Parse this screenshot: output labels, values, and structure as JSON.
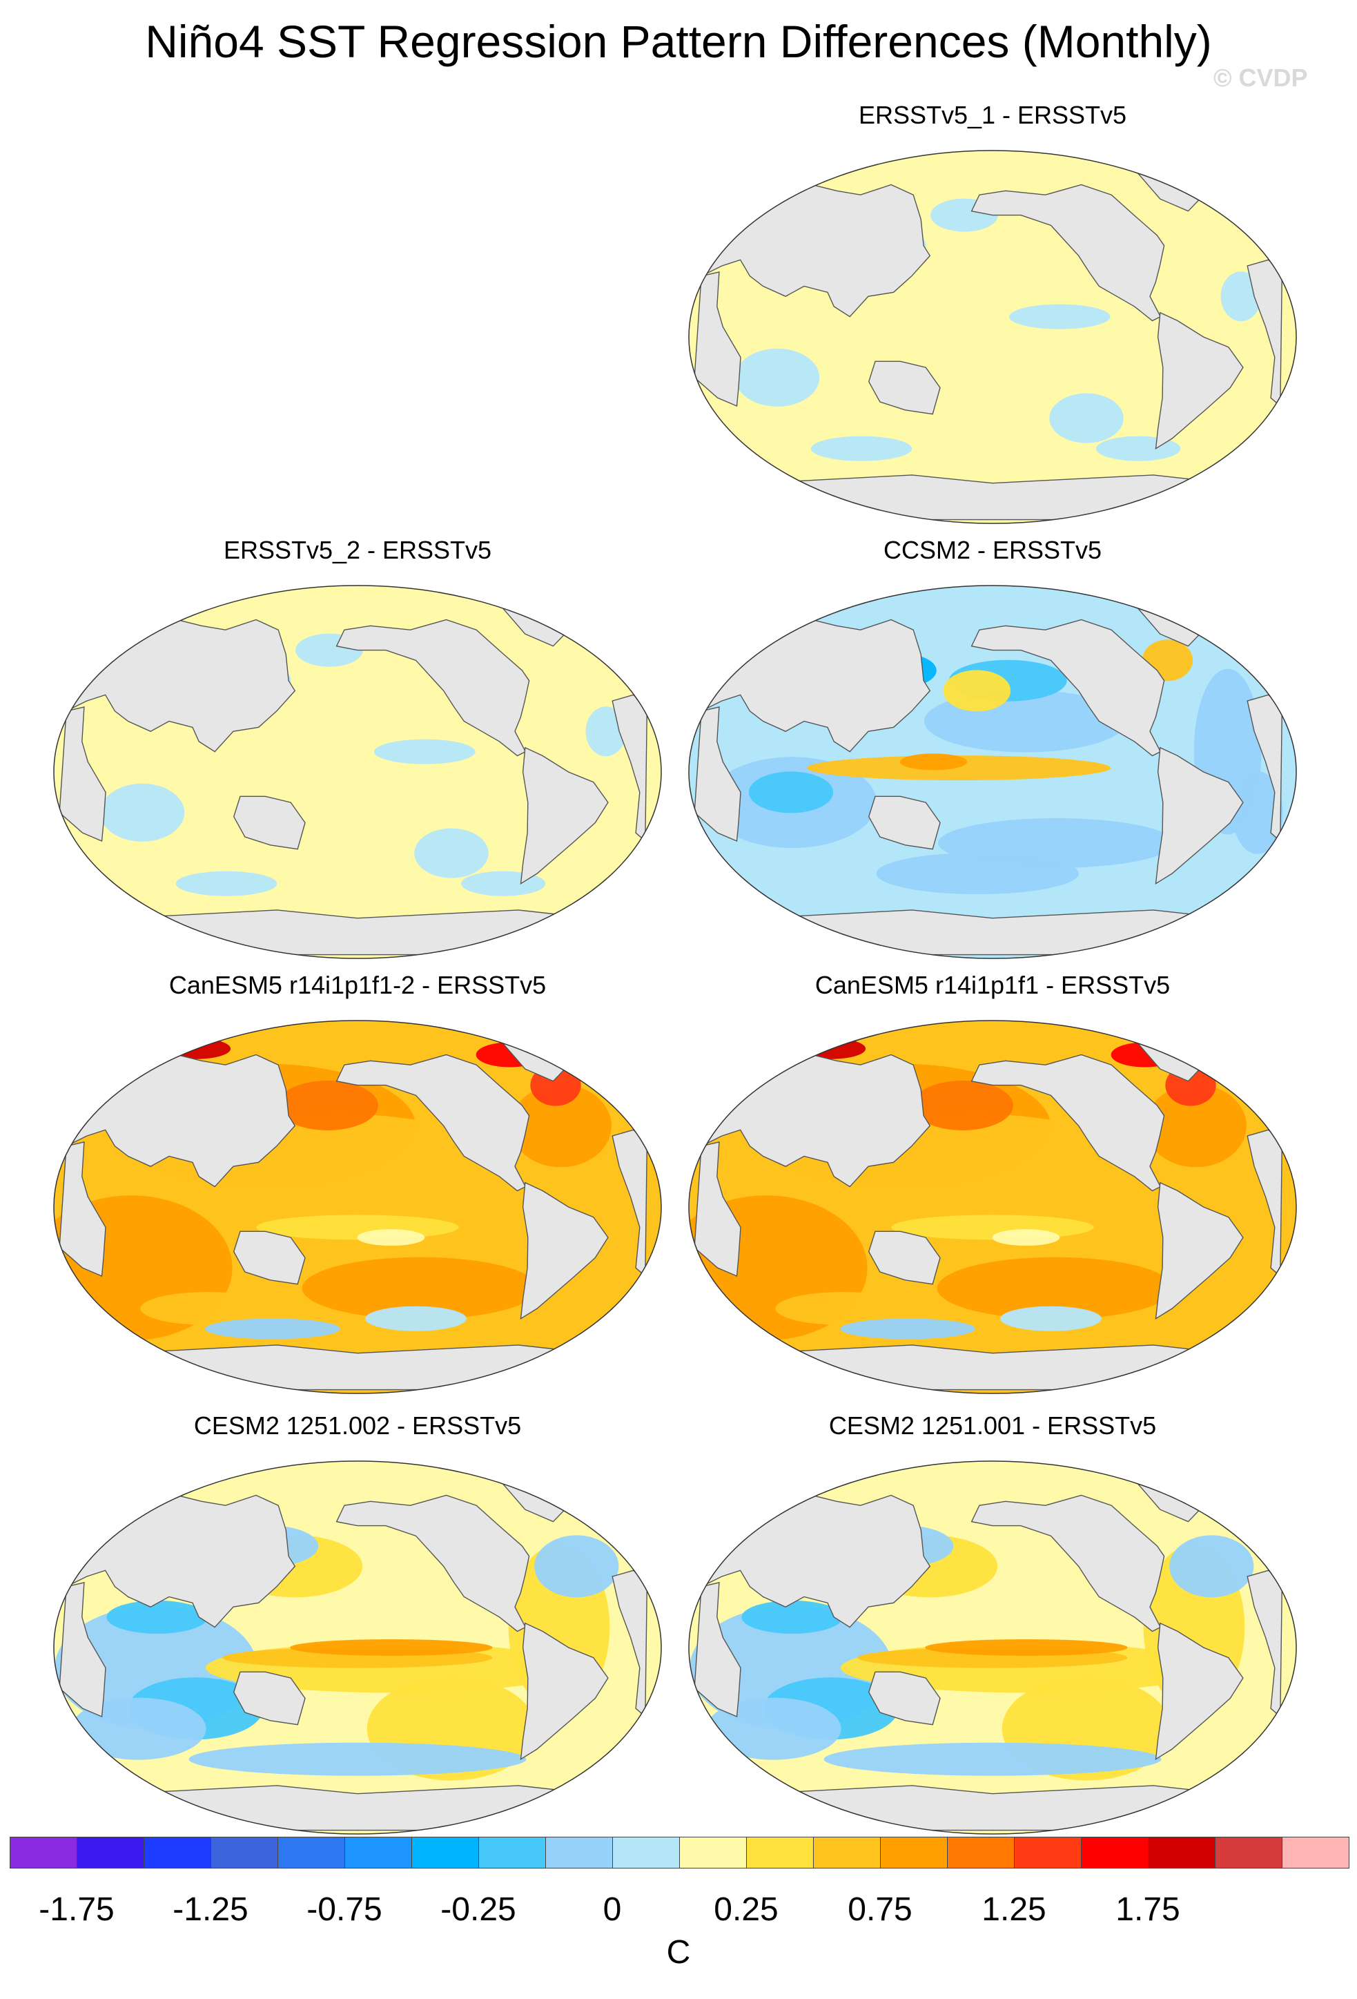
{
  "figure": {
    "title": "Niño4 SST Regression Pattern Differences (Monthly)",
    "watermark": "© CVDP"
  },
  "panels": [
    {
      "id": "ersstv5_1",
      "title": "ERSSTv5_1 - ERSSTv5",
      "pattern": "near-zero"
    },
    {
      "id": "ersstv5_2",
      "title": "ERSSTv5_2 - ERSSTv5",
      "pattern": "near-zero"
    },
    {
      "id": "ccsm2",
      "title": "CCSM2 - ERSSTv5",
      "pattern": "cool"
    },
    {
      "id": "canesm5_2",
      "title": "CanESM5 r14i1p1f1-2 - ERSSTv5",
      "pattern": "warm"
    },
    {
      "id": "canesm5_1",
      "title": "CanESM5 r14i1p1f1 - ERSSTv5",
      "pattern": "warm"
    },
    {
      "id": "cesm2_002",
      "title": "CESM2 1251.002 - ERSSTv5",
      "pattern": "mixed"
    },
    {
      "id": "cesm2_001",
      "title": "CESM2 1251.001 - ERSSTv5",
      "pattern": "mixed"
    }
  ],
  "colorbar": {
    "unit": "C",
    "colors": [
      "#8a2be2",
      "#3c19f0",
      "#1e3cff",
      "#3c64dc",
      "#2d78f0",
      "#1e96ff",
      "#00b4ff",
      "#46c8fa",
      "#96d2fa",
      "#b4e6fa",
      "#fffaaa",
      "#ffe13c",
      "#ffc31e",
      "#ffa000",
      "#ff7800",
      "#ff3c14",
      "#ff0000",
      "#d20000",
      "#d73c3c",
      "#ffb4b4"
    ],
    "tick_labels": [
      "-1.75",
      "-1.25",
      "-0.75",
      "-0.25",
      "0",
      "0.25",
      "0.75",
      "1.25",
      "1.75"
    ]
  },
  "palette": {
    "land": "#e6e6e6",
    "coast": "#555555"
  }
}
